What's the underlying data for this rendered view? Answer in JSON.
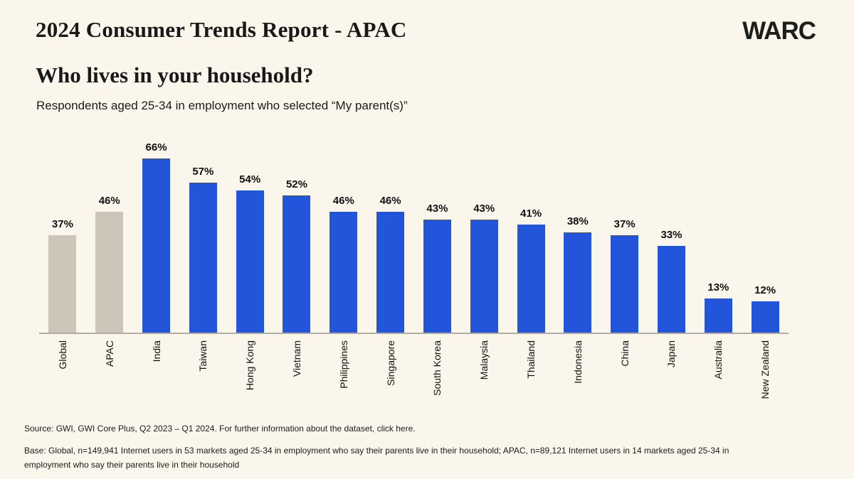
{
  "report": {
    "title": "2024 Consumer Trends Report - APAC",
    "brand": "WARC"
  },
  "chart_header": {
    "question": "Who lives in your household?",
    "subtitle": "Respondents aged 25-34 in employment who selected “My parent(s)”"
  },
  "chart_data": {
    "type": "bar",
    "title": "Who lives in your household?",
    "subtitle": "Respondents aged 25-34 in employment who selected “My parent(s)”",
    "categories": [
      "Global",
      "APAC",
      "India",
      "Taiwan",
      "Hong Kong",
      "Vietnam",
      "Philippines",
      "Singapore",
      "South Korea",
      "Malaysia",
      "Thailand",
      "Indonesia",
      "China",
      "Japan",
      "Australia",
      "New Zealand"
    ],
    "values": [
      37,
      46,
      66,
      57,
      54,
      52,
      46,
      46,
      43,
      43,
      41,
      38,
      37,
      33,
      13,
      12
    ],
    "value_suffix": "%",
    "ylim": [
      0,
      75
    ],
    "xlabel": "",
    "ylabel": "",
    "grid": false,
    "legend": false,
    "data_labels": true,
    "category_label_rotation": 90,
    "benchmark_categories": [
      "Global",
      "APAC"
    ],
    "colors": {
      "bar": "#2255d9",
      "benchmark_bar": "#cdc5b8",
      "axis": "#b1ada4",
      "background": "#faf6ec"
    }
  },
  "footer": {
    "source_prefix": "Source: GWI, GWI Core Plus, Q2 2023 – Q1 2024. For further information about the dataset, ",
    "source_link": "click here.",
    "base": "Base: Global, n=149,941 Internet users in 53 markets aged 25-34 in employment who say their parents live in their household; APAC, n=89,121 Internet users in 14 markets aged 25-34 in employment who say their parents live in their household"
  }
}
